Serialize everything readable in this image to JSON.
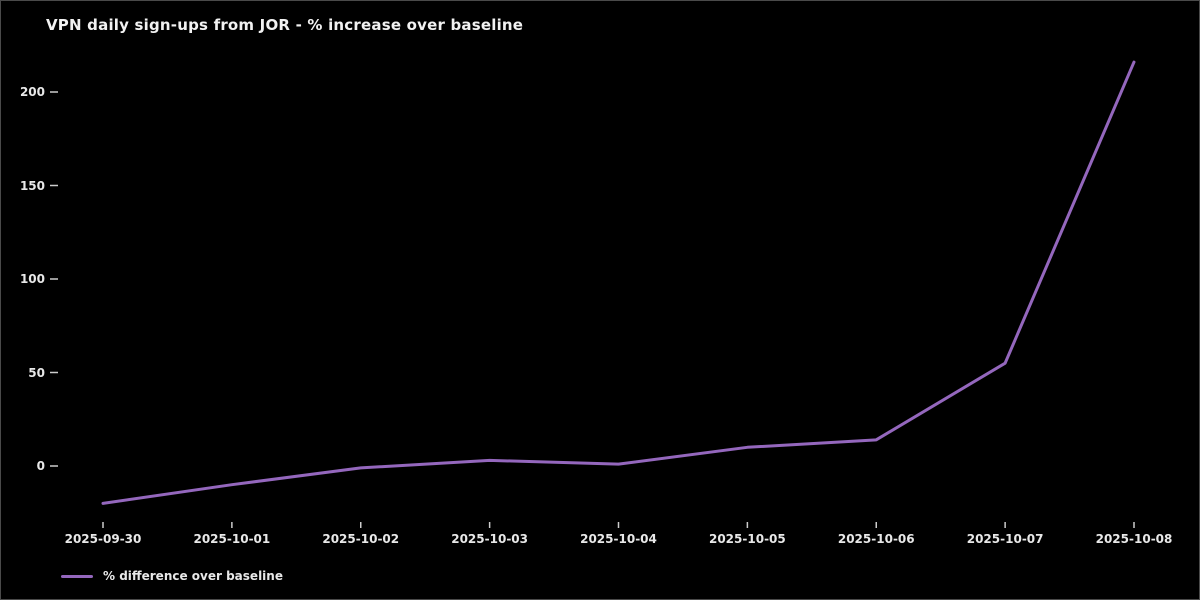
{
  "window": {
    "background": "#000000",
    "border_color": "#4a4a4a",
    "text_color": "#e8e8e8"
  },
  "chart_data": {
    "type": "line",
    "title": "VPN daily sign-ups from JOR - % increase over baseline",
    "categories": [
      "2025-09-30",
      "2025-10-01",
      "2025-10-02",
      "2025-10-03",
      "2025-10-04",
      "2025-10-05",
      "2025-10-06",
      "2025-10-07",
      "2025-10-08"
    ],
    "series": [
      {
        "name": "% difference over baseline",
        "values": [
          -20,
          -10,
          -1,
          3,
          1,
          10,
          14,
          55,
          216
        ],
        "color": "#9467bd"
      }
    ],
    "xlabel": "",
    "ylabel": "",
    "yticks": [
      0,
      50,
      100,
      150,
      200
    ],
    "ylim": [
      -33,
      235
    ],
    "grid": false,
    "legend_position": "lower-left",
    "tick_color": "#cccccc"
  }
}
